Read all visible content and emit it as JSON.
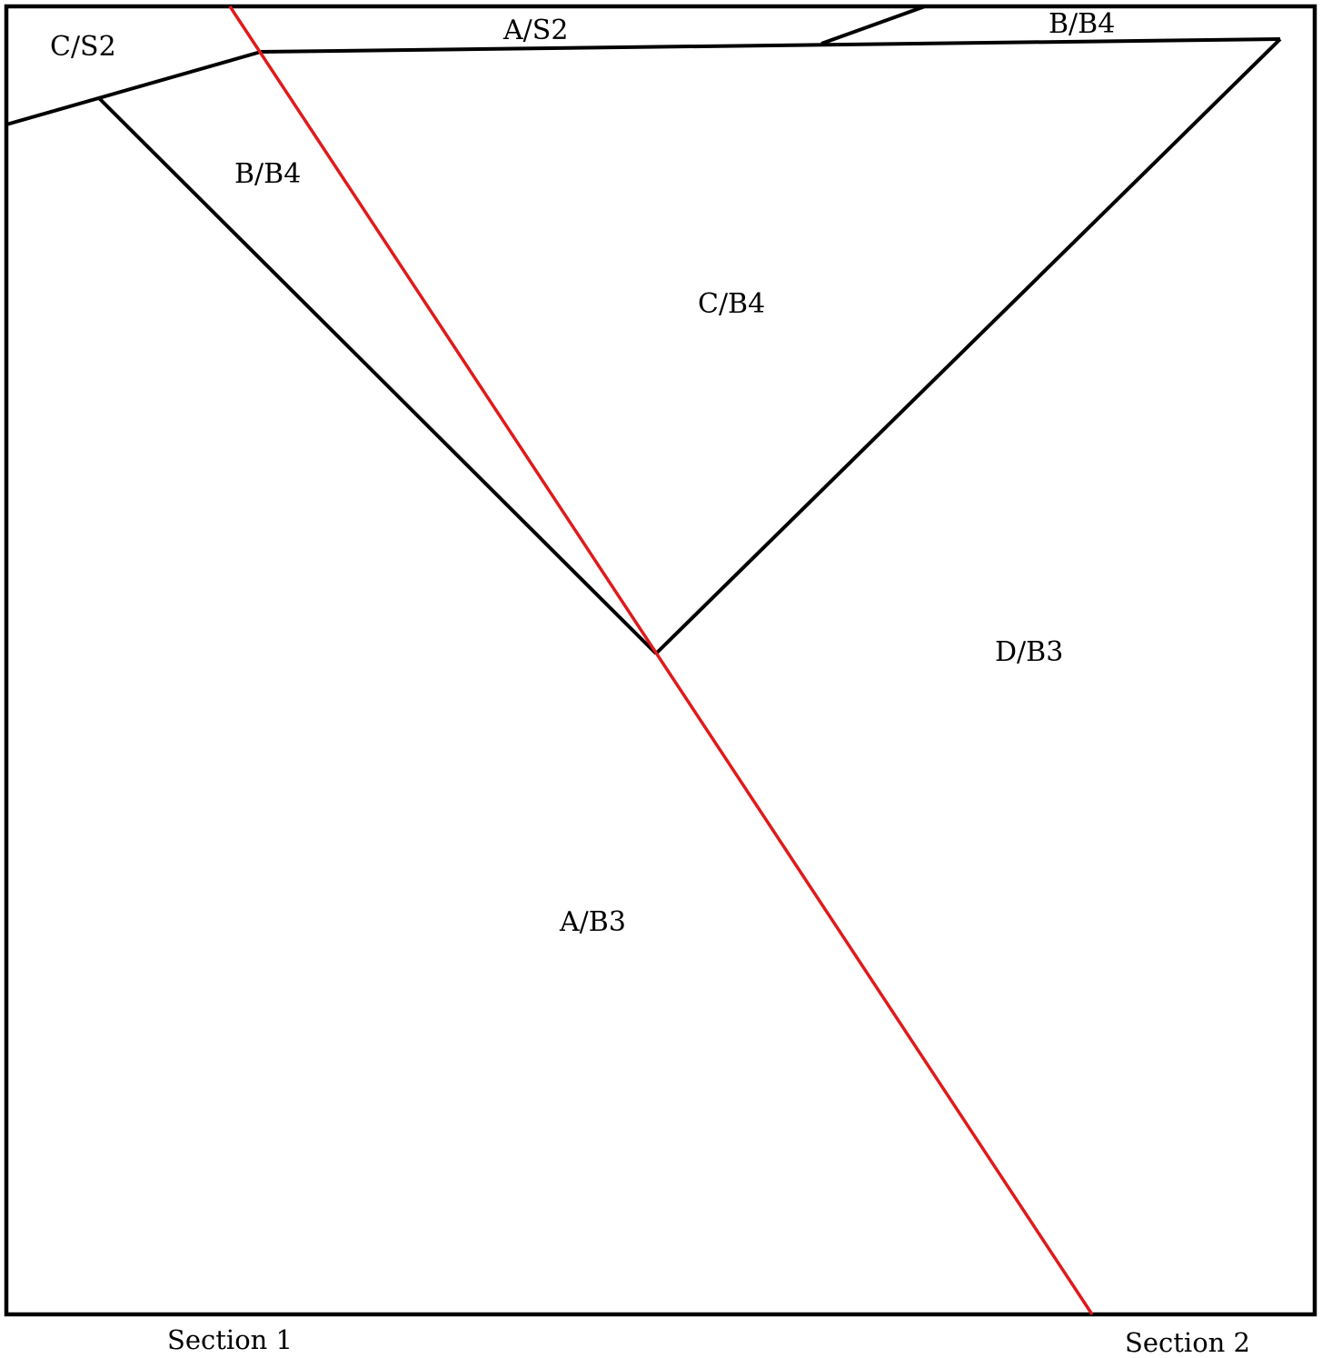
{
  "colors": {
    "boundary": "#000000",
    "section_line": "#e01a1a",
    "background": "#ffffff"
  },
  "regions": {
    "c_s2": "C/S2",
    "a_s2": "A/S2",
    "b_b4_top": "B/B4",
    "b_b4_left": "B/B4",
    "c_b4": "C/B4",
    "d_b3": "D/B3",
    "a_b3": "A/B3"
  },
  "sections": {
    "start": "Section 1",
    "end": "Section 2"
  }
}
